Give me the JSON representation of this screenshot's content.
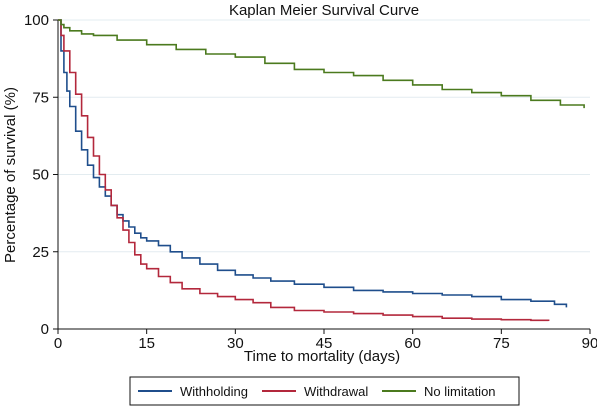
{
  "chart_data": {
    "type": "line",
    "title": "Kaplan Meier Survival Curve",
    "xlabel": "Time to mortality (days)",
    "ylabel": "Percentage of survival (%)",
    "xlim": [
      0,
      90
    ],
    "ylim": [
      0,
      100
    ],
    "xticks": [
      0,
      15,
      30,
      45,
      60,
      75,
      90
    ],
    "yticks": [
      0,
      25,
      50,
      75,
      100
    ],
    "grid": "horizontal",
    "legend_position": "bottom",
    "series": [
      {
        "name": "Withholding",
        "color": "#1f4e8c",
        "x": [
          0,
          0.5,
          1,
          1.5,
          2,
          3,
          4,
          5,
          6,
          7,
          8,
          9,
          10,
          11,
          12,
          13,
          14,
          15,
          17,
          19,
          21,
          24,
          27,
          30,
          33,
          36,
          40,
          45,
          50,
          55,
          60,
          65,
          70,
          75,
          80,
          84,
          86
        ],
        "y": [
          100,
          90,
          83,
          77,
          72,
          64,
          58,
          53,
          49,
          46,
          43,
          40,
          37,
          35,
          33,
          31,
          29.5,
          28.5,
          27,
          25,
          23,
          21,
          19,
          17.5,
          16.5,
          15.5,
          14.5,
          13.5,
          12.5,
          12,
          11.5,
          11,
          10.5,
          9.5,
          9,
          8,
          7
        ]
      },
      {
        "name": "Withdrawal",
        "color": "#b3283c",
        "x": [
          0,
          0.5,
          1,
          2,
          3,
          4,
          5,
          6,
          7,
          8,
          9,
          10,
          11,
          12,
          13,
          14,
          15,
          17,
          19,
          21,
          24,
          27,
          30,
          33,
          36,
          40,
          45,
          50,
          55,
          60,
          65,
          70,
          75,
          80,
          83
        ],
        "y": [
          100,
          95,
          90,
          83,
          76,
          69,
          62,
          56,
          50,
          45,
          40,
          36,
          32,
          28,
          24,
          21,
          19.5,
          17,
          15,
          13,
          11.5,
          10.5,
          9.5,
          8.5,
          7,
          6,
          5.5,
          5,
          4.5,
          4,
          3.5,
          3.2,
          3,
          2.8,
          2.6
        ]
      },
      {
        "name": "No limitation",
        "color": "#4b7a1e",
        "x": [
          0,
          0.5,
          1,
          2,
          4,
          6,
          10,
          15,
          20,
          25,
          30,
          35,
          40,
          45,
          50,
          55,
          60,
          65,
          70,
          75,
          80,
          85,
          89
        ],
        "y": [
          100,
          98.5,
          97.5,
          96.5,
          95.5,
          95,
          93.5,
          92,
          90.5,
          89,
          88,
          86,
          84,
          83,
          82,
          80.5,
          79,
          77.5,
          76.5,
          75.5,
          74,
          72.5,
          71.5
        ]
      }
    ]
  }
}
